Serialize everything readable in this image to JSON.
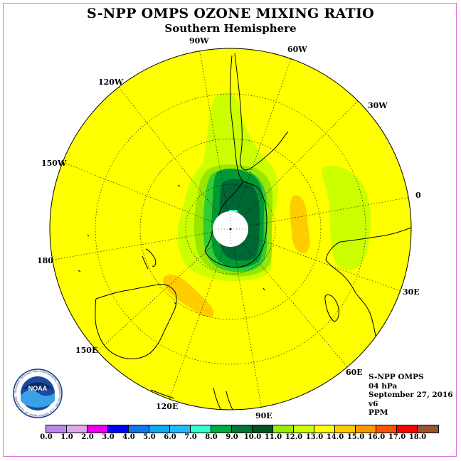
{
  "header": {
    "title": "S-NPP OMPS OZONE MIXING RATIO",
    "subtitle": "Southern Hemisphere"
  },
  "map": {
    "projection": "south-polar-stereographic",
    "longitude_labels": [
      "90W",
      "60W",
      "30W",
      "0",
      "30E",
      "60E",
      "90E",
      "120E",
      "150E",
      "180",
      "150W",
      "120W"
    ],
    "colors": {
      "background": "#ffff00",
      "light_green": "#ccff00",
      "medium_green": "#99e600",
      "green": "#33cc33",
      "dark_green": "#009933",
      "darkest_green": "#006633",
      "orange": "#ffcc00",
      "dark_orange": "#ff9900",
      "cyan": "#33ffcc",
      "no_data": "#ffffff"
    }
  },
  "info": {
    "lines": [
      "S-NPP OMPS",
      "04 hPa",
      "September 27, 2016",
      "v6",
      "PPM"
    ]
  },
  "colorbar": {
    "labels": [
      "0.0",
      "1.0",
      "2.0",
      "3.0",
      "4.0",
      "5.0",
      "6.0",
      "7.0",
      "8.0",
      "9.0",
      "10.0",
      "11.0",
      "12.0",
      "13.0",
      "14.0",
      "15.0",
      "16.0",
      "17.0",
      "18.0"
    ],
    "colors": [
      "#bb88ee",
      "#ddaaee",
      "#ee00ee",
      "#0000ff",
      "#1177ee",
      "#11aaee",
      "#22bbff",
      "#33ffcc",
      "#00aa44",
      "#007733",
      "#005522",
      "#99ee00",
      "#ccff00",
      "#ffff00",
      "#ffcc00",
      "#ff9900",
      "#ff5500",
      "#ff0000",
      "#995533"
    ]
  },
  "logo": {
    "text": "NOAA",
    "ring_text": "NATIONAL OCEANIC AND ATMOSPHERIC ADMINISTRATION · U.S. DEPARTMENT OF COMMERCE"
  }
}
